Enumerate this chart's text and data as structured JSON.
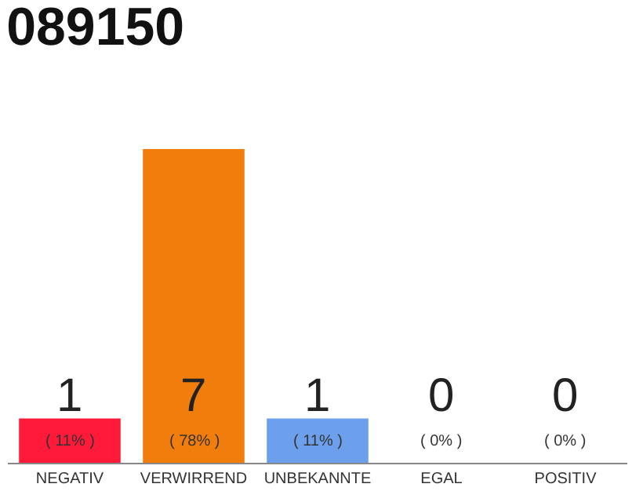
{
  "chart_data": {
    "type": "bar",
    "title": "089150",
    "categories": [
      "NEGATIV",
      "VERWIRREND",
      "UNBEKANNTE",
      "EGAL",
      "POSITIV"
    ],
    "values": [
      11,
      78,
      11,
      0,
      0
    ],
    "colors": [
      "#ff1a3a",
      "#f07d0c",
      "#6ca0ec",
      "#cccccc",
      "#cccccc"
    ],
    "value_labels": [
      "( 11% )",
      "( 78% )",
      "( 11% )",
      "( 0% )",
      "( 0% )"
    ],
    "annotations": [
      {
        "text": "1",
        "x": "NEGATIV",
        "y": 0
      },
      {
        "text": "7",
        "x": "VERWIRREND",
        "y": 0
      },
      {
        "text": "1",
        "x": "UNBEKANNTE",
        "y": 0
      },
      {
        "text": "0",
        "x": "EGAL",
        "y": 0
      },
      {
        "text": "0",
        "x": "POSITIV",
        "y": 0
      }
    ],
    "tick_labels": "x",
    "legend": false
  }
}
